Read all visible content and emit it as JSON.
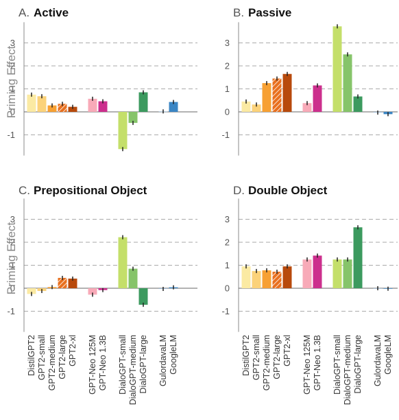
{
  "chart_data": [
    {
      "type": "bar",
      "panel_letter": "A.",
      "title": "Active",
      "ylabel": "Priming Effect",
      "ylim": [
        -1.9,
        3.9
      ],
      "yticks": [
        -1,
        0,
        1,
        2,
        3
      ],
      "grid": "dashed horizontal",
      "categories": [
        "DistilGPT2",
        "GPT2-small",
        "GPT2-medium",
        "GPT2-large",
        "GPT2-xl",
        "GPT-Neo 125M",
        "GPT-Neo 1.3B",
        "DialoGPT-small",
        "DialoGPT-medium",
        "DialoGPT-large",
        "GulordavaLM",
        "GoogleLM"
      ],
      "values": [
        0.75,
        0.68,
        0.28,
        0.35,
        0.22,
        0.57,
        0.46,
        -1.62,
        -0.48,
        0.85,
        0.02,
        0.43
      ]
    },
    {
      "type": "bar",
      "panel_letter": "B.",
      "title": "Passive",
      "ylabel": "",
      "ylim": [
        -1.9,
        3.9
      ],
      "yticks": [
        -1,
        0,
        1,
        2,
        3
      ],
      "grid": "dashed horizontal",
      "categories": [
        "DistilGPT2",
        "GPT2-small",
        "GPT2-medium",
        "GPT2-large",
        "GPT2-xl",
        "GPT-Neo 125M",
        "GPT-Neo 1.3B",
        "DialoGPT-small",
        "DialoGPT-medium",
        "DialoGPT-large",
        "GulordavaLM",
        "GoogleLM"
      ],
      "values": [
        0.45,
        0.32,
        1.25,
        1.45,
        1.65,
        0.38,
        1.15,
        3.72,
        2.5,
        0.67,
        -0.03,
        -0.1
      ]
    },
    {
      "type": "bar",
      "panel_letter": "C.",
      "title": "Prepositional Object",
      "ylabel": "Priming Effect",
      "ylim": [
        -1.9,
        3.9
      ],
      "yticks": [
        -1,
        0,
        1,
        2,
        3
      ],
      "grid": "dashed horizontal",
      "categories": [
        "DistilGPT2",
        "GPT2-small",
        "GPT2-medium",
        "GPT2-large",
        "GPT2-xl",
        "GPT-Neo 125M",
        "GPT-Neo 1.3B",
        "DialoGPT-small",
        "DialoGPT-medium",
        "DialoGPT-large",
        "GulordavaLM",
        "GoogleLM"
      ],
      "values": [
        -0.25,
        -0.12,
        0.05,
        0.45,
        0.42,
        -0.28,
        -0.08,
        2.22,
        0.85,
        -0.72,
        -0.03,
        0.04
      ]
    },
    {
      "type": "bar",
      "panel_letter": "D.",
      "title": "Double Object",
      "ylabel": "",
      "ylim": [
        -1.9,
        3.9
      ],
      "yticks": [
        -1,
        0,
        1,
        2,
        3
      ],
      "grid": "dashed horizontal",
      "categories": [
        "DistilGPT2",
        "GPT2-small",
        "GPT2-medium",
        "GPT2-large",
        "GPT2-xl",
        "GPT-Neo 125M",
        "GPT-Neo 1.3B",
        "DialoGPT-small",
        "DialoGPT-medium",
        "DialoGPT-large",
        "GulordavaLM",
        "GoogleLM"
      ],
      "values": [
        0.95,
        0.75,
        0.78,
        0.72,
        0.95,
        1.25,
        1.42,
        1.25,
        1.25,
        2.65,
        0.0,
        -0.02
      ]
    }
  ],
  "colors": {
    "DistilGPT2": "#fbeaa3",
    "GPT2-small": "#fbd27a",
    "GPT2-medium": "#f7a033",
    "GPT2-large": "#e8701f",
    "GPT2-xl": "#b84a0c",
    "GPT-Neo 125M": "#f8aab8",
    "GPT-Neo 1.3B": "#cc2f8d",
    "DialoGPT-small": "#c4df6a",
    "DialoGPT-medium": "#86c46a",
    "DialoGPT-large": "#3c9a5f",
    "GulordavaLM": "#9fbbd6",
    "GoogleLM": "#3b86c4",
    "hatched": "GPT2-large"
  }
}
